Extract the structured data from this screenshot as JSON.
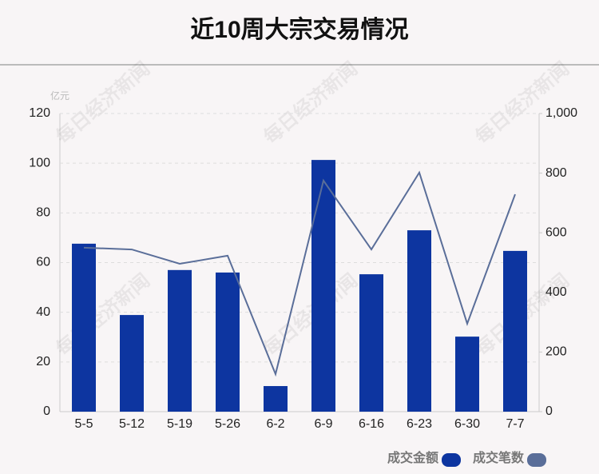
{
  "chart_data": {
    "type": "bar_line",
    "title": "近10周大宗交易情况",
    "y_unit": "亿元",
    "watermark": "每日经济新闻",
    "categories": [
      "5-5",
      "5-12",
      "5-19",
      "5-26",
      "6-2",
      "6-9",
      "6-16",
      "6-23",
      "6-30",
      "7-7"
    ],
    "series": [
      {
        "name": "成交金额",
        "color": "#0d35a0",
        "values": [
          67.6,
          38.9,
          57.0,
          56.0,
          10.3,
          101.3,
          55.3,
          73.0,
          30.2,
          64.7
        ]
      },
      {
        "name": "成交笔数",
        "color": "#5a6e99",
        "axis": "y2",
        "values": [
          550,
          544,
          496,
          523,
          126,
          775,
          544,
          802,
          295,
          729
        ]
      }
    ],
    "ylim": [
      0,
      120
    ],
    "yticks": [
      0,
      20,
      40,
      60,
      80,
      100,
      120
    ],
    "y2lim": [
      0,
      1000
    ],
    "y2ticks": [
      0,
      200,
      400,
      600,
      800,
      {
        "value": 1000,
        "label": "1,000"
      }
    ],
    "grid": true
  }
}
